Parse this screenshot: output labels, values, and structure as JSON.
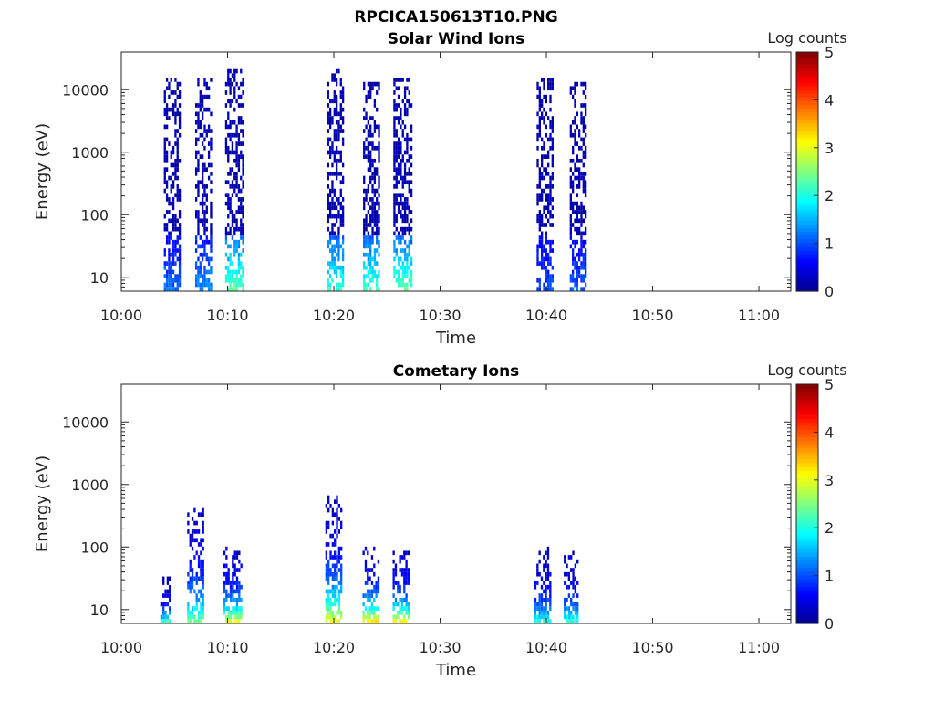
{
  "figure_title": "RPCICA150613T10.PNG",
  "colors": {
    "colormap": [
      "#00008f",
      "#0000ff",
      "#0080ff",
      "#00ffff",
      "#80ff80",
      "#ffff00",
      "#ff8000",
      "#ff0000",
      "#800000"
    ],
    "axes": "#262626",
    "background": "#ffffff"
  },
  "chart_data": [
    {
      "type": "heatmap",
      "title": "Solar Wind Ions",
      "xlabel": "Time",
      "ylabel": "Energy (eV)",
      "yscale": "log",
      "xlim": [
        "10:00",
        "11:03"
      ],
      "ylim": [
        6,
        40000
      ],
      "x_ticks": [
        "10:00",
        "10:10",
        "10:20",
        "10:30",
        "10:40",
        "10:50",
        "11:00"
      ],
      "y_ticks": [
        10,
        100,
        1000,
        10000
      ],
      "y_tick_labels": [
        "10",
        "100",
        "1000",
        "10000"
      ],
      "colorbar": {
        "label": "Log counts",
        "range": [
          0,
          5
        ],
        "ticks": [
          "0",
          "1",
          "2",
          "3",
          "4",
          "5"
        ]
      },
      "bursts": [
        {
          "center": "10:04:45",
          "width_min": 1.5,
          "emax": 15000,
          "low_counts": 1.0
        },
        {
          "center": "10:07:45",
          "width_min": 1.6,
          "emax": 15000,
          "low_counts": 1.2
        },
        {
          "center": "10:10:40",
          "width_min": 1.8,
          "emax": 20000,
          "low_counts": 2.2
        },
        {
          "center": "10:20:10",
          "width_min": 1.6,
          "emax": 20000,
          "low_counts": 2.0
        },
        {
          "center": "10:23:30",
          "width_min": 1.5,
          "emax": 12000,
          "low_counts": 2.1
        },
        {
          "center": "10:26:30",
          "width_min": 1.8,
          "emax": 15000,
          "low_counts": 2.2
        },
        {
          "center": "10:39:50",
          "width_min": 1.5,
          "emax": 15000,
          "low_counts": 0.8
        },
        {
          "center": "10:43:00",
          "width_min": 1.6,
          "emax": 12000,
          "low_counts": 0.9
        }
      ]
    },
    {
      "type": "heatmap",
      "title": "Cometary Ions",
      "xlabel": "Time",
      "ylabel": "Energy (eV)",
      "yscale": "log",
      "xlim": [
        "10:00",
        "11:03"
      ],
      "ylim": [
        6,
        40000
      ],
      "x_ticks": [
        "10:00",
        "10:10",
        "10:20",
        "10:30",
        "10:40",
        "10:50",
        "11:00"
      ],
      "y_ticks": [
        10,
        100,
        1000,
        10000
      ],
      "y_tick_labels": [
        "10",
        "100",
        "1000",
        "10000"
      ],
      "colorbar": {
        "label": "Log counts",
        "range": [
          0,
          5
        ],
        "ticks": [
          "0",
          "1",
          "2",
          "3",
          "4",
          "5"
        ]
      },
      "bursts": [
        {
          "center": "10:04:10",
          "width_min": 1.0,
          "emax": 30,
          "low_counts": 2.0
        },
        {
          "center": "10:07:00",
          "width_min": 1.6,
          "emax": 400,
          "low_counts": 2.3
        },
        {
          "center": "10:10:30",
          "width_min": 1.8,
          "emax": 100,
          "low_counts": 2.8
        },
        {
          "center": "10:20:00",
          "width_min": 1.6,
          "emax": 600,
          "low_counts": 2.9
        },
        {
          "center": "10:23:30",
          "width_min": 1.6,
          "emax": 100,
          "low_counts": 3.1
        },
        {
          "center": "10:26:20",
          "width_min": 1.6,
          "emax": 80,
          "low_counts": 3.0
        },
        {
          "center": "10:39:40",
          "width_min": 1.6,
          "emax": 100,
          "low_counts": 1.8
        },
        {
          "center": "10:42:20",
          "width_min": 1.4,
          "emax": 80,
          "low_counts": 1.9
        }
      ]
    }
  ]
}
